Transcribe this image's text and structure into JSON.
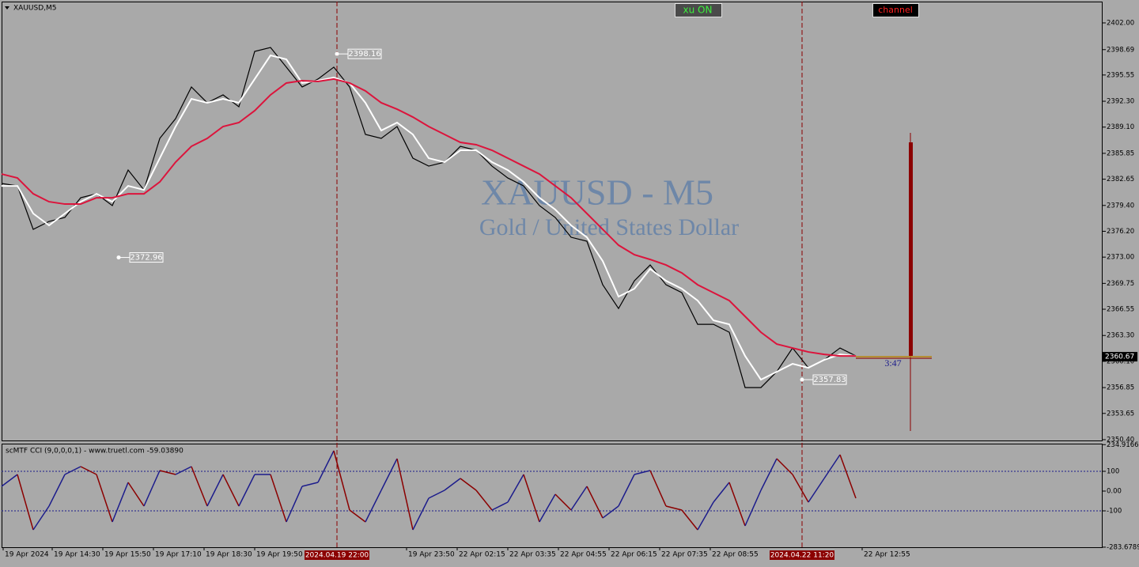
{
  "header": {
    "symbol": "XAUUSD,M5",
    "buttons": [
      "xu ON",
      "channel"
    ]
  },
  "chart_data": [
    {
      "type": "line",
      "title": "XAUUSD - M5",
      "subtitle": "Gold / United States Dollar",
      "x": [
        0,
        5,
        10,
        15,
        20,
        25,
        30,
        35,
        40,
        45,
        50,
        55,
        60,
        65,
        70,
        75,
        80,
        85,
        90,
        95,
        100,
        105,
        110,
        115,
        120,
        125,
        130,
        135,
        140,
        145,
        150,
        155,
        160,
        165,
        170,
        175,
        180,
        185,
        190,
        195,
        200,
        205,
        210,
        215,
        220,
        225,
        230,
        235,
        240,
        245,
        250,
        255,
        260,
        265,
        270
      ],
      "series": [
        {
          "color": "#000000",
          "values": [
            2382.12,
            2381.82,
            2376.44,
            2377.42,
            2377.91,
            2380.35,
            2380.84,
            2379.38,
            2383.78,
            2381.33,
            2387.7,
            2390.15,
            2394.07,
            2392.11,
            2393.09,
            2391.62,
            2398.47,
            2398.96,
            2396.52,
            2394.07,
            2395.05,
            2396.52,
            2394.07,
            2388.19,
            2387.7,
            2389.17,
            2385.25,
            2384.27,
            2384.76,
            2386.72,
            2386.23,
            2384.27,
            2382.8,
            2381.82,
            2379.38,
            2377.91,
            2375.46,
            2374.97,
            2369.58,
            2366.64,
            2370.07,
            2372.03,
            2369.58,
            2368.6,
            2364.68,
            2364.68,
            2363.7,
            2356.85,
            2356.85,
            2358.81,
            2361.75,
            2359.3,
            2360.28,
            2361.75,
            2360.77
          ]
        },
        {
          "color": "#ffffff",
          "values": [
            2381.82,
            2381.82,
            2378.4,
            2376.93,
            2378.4,
            2379.86,
            2380.84,
            2379.86,
            2381.82,
            2381.33,
            2385.25,
            2389.17,
            2392.6,
            2392.11,
            2392.6,
            2392.11,
            2395.05,
            2397.98,
            2397.49,
            2394.56,
            2394.85,
            2395.24,
            2394.56,
            2392.11,
            2388.68,
            2389.66,
            2388.19,
            2385.25,
            2384.76,
            2386.23,
            2386.23,
            2384.76,
            2383.78,
            2382.31,
            2380.35,
            2378.89,
            2376.93,
            2375.46,
            2372.52,
            2368.11,
            2369.09,
            2371.54,
            2370.07,
            2369.09,
            2367.62,
            2365.17,
            2364.68,
            2360.77,
            2357.83,
            2358.81,
            2359.79,
            2359.3,
            2360.28,
            2360.96,
            2360.77
          ]
        },
        {
          "color": "#dc143c",
          "values": [
            2383.29,
            2382.8,
            2380.84,
            2379.86,
            2379.57,
            2379.57,
            2380.35,
            2380.35,
            2380.84,
            2380.84,
            2382.31,
            2384.76,
            2386.72,
            2387.7,
            2389.17,
            2389.66,
            2391.13,
            2393.09,
            2394.56,
            2394.85,
            2394.75,
            2395.05,
            2394.56,
            2393.58,
            2392.11,
            2391.32,
            2390.34,
            2389.17,
            2388.19,
            2387.21,
            2386.92,
            2386.23,
            2385.25,
            2384.27,
            2383.29,
            2381.82,
            2380.35,
            2378.4,
            2376.44,
            2374.48,
            2373.3,
            2372.71,
            2372.03,
            2371.05,
            2369.58,
            2368.6,
            2367.62,
            2365.66,
            2363.7,
            2362.24,
            2361.75,
            2361.26,
            2360.96,
            2360.77,
            2360.77
          ]
        }
      ],
      "xlim": [
        0,
        348
      ],
      "ylim": [
        2350.3,
        2404.64
      ],
      "yticks": [
        {
          "value": 2402,
          "label": "2402.00"
        },
        2398.69,
        2395.55,
        {
          "value": 2392.3,
          "label": "2392.30"
        },
        {
          "value": 2389.1,
          "label": "2389.10"
        },
        2385.85,
        2382.65,
        {
          "value": 2379.4,
          "label": "2379.40"
        },
        {
          "value": 2376.2,
          "label": "2376.20"
        },
        {
          "value": 2373,
          "label": "2373.00"
        },
        2369.75,
        2366.55,
        {
          "value": 2363.3,
          "label": "2363.30"
        },
        {
          "value": 2360.1,
          "label": "2360.10"
        },
        2356.85,
        2353.65,
        {
          "value": 2350.4,
          "label": "2350.40"
        }
      ],
      "price_labels": [
        {
          "x": 106,
          "value": 2398.16
        },
        {
          "x": 37,
          "value": 2372.96
        },
        {
          "x": 253,
          "value": 2357.83
        }
      ],
      "vlines": [
        {
          "value": 106,
          "label": "2024.04.19 22:00"
        },
        {
          "value": 253,
          "label": "2024.04.22 11:20"
        }
      ],
      "last_price": 2360.67,
      "timer": "3:47"
    },
    {
      "type": "line",
      "title": "scMTF CCI (9,0,0,0,1) - www.truetl.com -59.03890",
      "x": [
        0,
        5,
        10,
        15,
        20,
        25,
        30,
        35,
        40,
        45,
        50,
        55,
        60,
        65,
        70,
        75,
        80,
        85,
        90,
        95,
        100,
        105,
        110,
        115,
        120,
        125,
        130,
        135,
        140,
        145,
        150,
        155,
        160,
        165,
        170,
        175,
        180,
        185,
        190,
        195,
        200,
        205,
        210,
        215,
        220,
        225,
        230,
        235,
        240,
        245,
        250,
        255,
        260,
        265,
        270
      ],
      "series": [
        {
          "color": "#1c1c8c",
          "down_color": "#8b0000",
          "values": [
            24,
            84,
            -196,
            -76,
            84,
            124,
            84,
            -156,
            44,
            -76,
            104,
            84,
            124,
            -76,
            84,
            -76,
            84,
            84,
            -156,
            24,
            44,
            204,
            -96,
            -156,
            4,
            164,
            -196,
            -36,
            4,
            64,
            4,
            -96,
            -56,
            84,
            -156,
            -16,
            -96,
            24,
            -136,
            -76,
            84,
            104,
            -76,
            -96,
            -196,
            -56,
            44,
            -176,
            4,
            164,
            84,
            -56,
            64,
            184,
            -36
          ]
        }
      ],
      "xlim": [
        0,
        348
      ],
      "ylim": [
        -284,
        240
      ],
      "yticks": [
        234.9166,
        100,
        {
          "value": 0,
          "label": "0.00"
        },
        -100,
        -283.6789
      ],
      "levels": [
        100,
        -100
      ],
      "xticks": [
        {
          "value": 0.5,
          "label": "19 Apr 2024"
        },
        {
          "value": 16,
          "label": "19 Apr 14:30"
        },
        {
          "value": 32,
          "label": "19 Apr 15:50"
        },
        {
          "value": 48,
          "label": "19 Apr 17:10"
        },
        {
          "value": 64,
          "label": "19 Apr 18:30"
        },
        {
          "value": 80,
          "label": "19 Apr 19:50"
        },
        {
          "value": 128,
          "label": "19 Apr 23:50"
        },
        {
          "value": 144,
          "label": "22 Apr 02:15"
        },
        {
          "value": 160,
          "label": "22 Apr 03:35"
        },
        {
          "value": 176,
          "label": "22 Apr 04:55"
        },
        {
          "value": 192,
          "label": "22 Apr 06:15"
        },
        {
          "value": 208,
          "label": "22 Apr 07:35"
        },
        {
          "value": 224,
          "label": "22 Apr 08:55"
        },
        {
          "value": 272,
          "label": "22 Apr 12:55"
        }
      ]
    }
  ]
}
